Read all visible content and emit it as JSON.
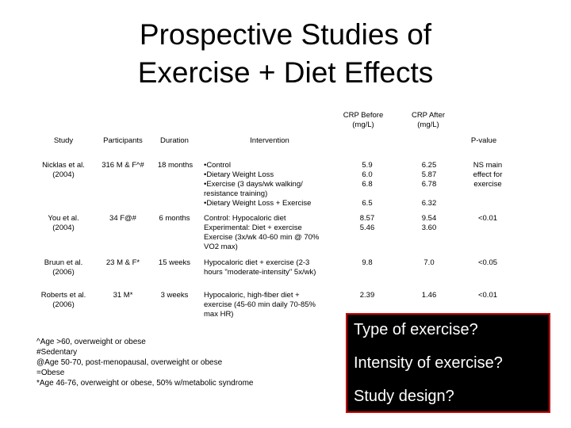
{
  "title": {
    "line1": "Prospective Studies of",
    "line2": "Exercise + Diet  Effects"
  },
  "table": {
    "headers": {
      "study": "Study",
      "participants": "Participants",
      "duration": "Duration",
      "intervention": "Intervention",
      "crp_before": "CRP Before (mg/L)",
      "crp_after": "CRP After (mg/L)",
      "pvalue": "P-value"
    },
    "rows": [
      {
        "study": "Nicklas et al. (2004)",
        "participants": "316 M & F^#",
        "duration": "18 months",
        "intervention": "•Control\n•Dietary Weight Loss\n•Exercise (3 days/wk walking/ resistance training)\n•Dietary Weight Loss + Exercise",
        "crp_before": "5.9\n6.0\n6.8\n\n6.5",
        "crp_after": "6.25\n5.87\n6.78\n\n6.32",
        "pvalue": "NS main effect for exercise"
      },
      {
        "study": "You et al. (2004)",
        "participants": "34 F@#",
        "duration": "6 months",
        "intervention": "Control: Hypocaloric diet\nExperimental: Diet + exercise Exercise (3x/wk 40-60 min @ 70% VO2 max)",
        "crp_before": "8.57\n5.46",
        "crp_after": "9.54\n3.60",
        "pvalue": "<0.01"
      },
      {
        "study": "Bruun et al. (2006)",
        "participants": "23 M & F*",
        "duration": "15 weeks",
        "intervention": "Hypocaloric diet + exercise (2-3 hours \"moderate-intensity\" 5x/wk)",
        "crp_before": "9.8",
        "crp_after": "7.0",
        "pvalue": "<0.05"
      },
      {
        "study": "Roberts et al. (2006)",
        "participants": "31 M*",
        "duration": "3 weeks",
        "intervention": "Hypocaloric, high-fiber diet + exercise (45-60 min daily 70-85% max HR)",
        "crp_before": "2.39",
        "crp_after": "1.46",
        "pvalue": "<0.01"
      }
    ]
  },
  "footnotes": [
    "^Age >60, overweight or obese",
    "#Sedentary",
    "@Age 50-70, post-menopausal, overweight or obese",
    "=Obese",
    "*Age 46-76, overweight or obese, 50% w/metabolic syndrome"
  ],
  "callout": {
    "lines": [
      "Type of exercise?",
      "Intensity of exercise?",
      "Study design?"
    ],
    "background": "#000000",
    "border": "#cc0000",
    "text_color": "#ffffff"
  }
}
